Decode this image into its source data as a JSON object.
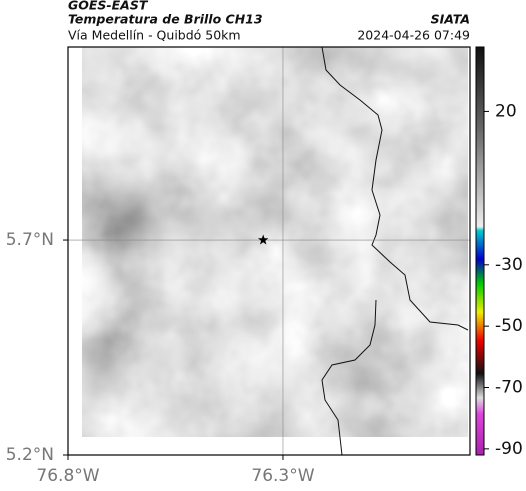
{
  "header": {
    "source": "GOES-EAST",
    "product": "Temperatura de Brillo CH13",
    "region": "Vía Medellín - Quibdó 50km",
    "agency": "SIATA",
    "datetime": "2024-04-26 07:49"
  },
  "map": {
    "xlim": [
      -76.8,
      -75.865
    ],
    "ylim": [
      5.2,
      6.149
    ],
    "xticks": [
      {
        "value": -76.8,
        "label": "76.8°W"
      },
      {
        "value": -76.3,
        "label": "76.3°W"
      }
    ],
    "yticks": [
      {
        "value": 5.2,
        "label": "5.2°N"
      },
      {
        "value": 5.7,
        "label": "5.7°N"
      }
    ],
    "marker": {
      "lon": -76.346,
      "lat": 5.7
    }
  },
  "colorbar": {
    "lim": [
      -92,
      41
    ],
    "ticks": [
      20,
      -30,
      -50,
      -70,
      -90
    ]
  }
}
